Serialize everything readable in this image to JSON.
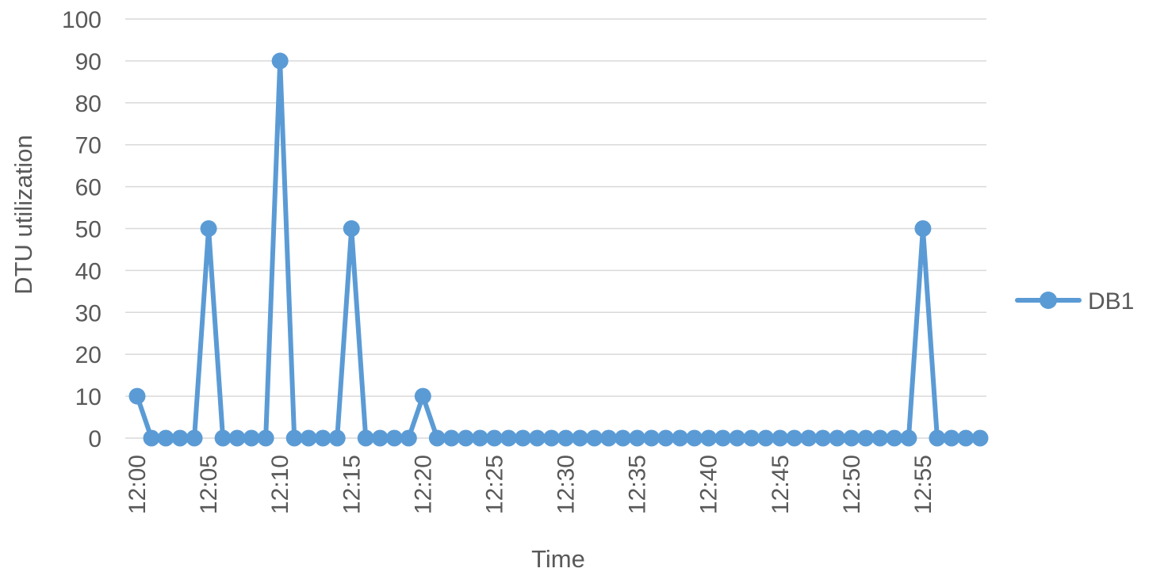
{
  "chart_data": {
    "type": "line",
    "xlabel": "Time",
    "ylabel": "DTU utilization",
    "ylim": [
      0,
      100
    ],
    "yticks": [
      0,
      10,
      20,
      30,
      40,
      50,
      60,
      70,
      80,
      90,
      100
    ],
    "x": [
      "12:00",
      "12:01",
      "12:02",
      "12:03",
      "12:04",
      "12:05",
      "12:06",
      "12:07",
      "12:08",
      "12:09",
      "12:10",
      "12:11",
      "12:12",
      "12:13",
      "12:14",
      "12:15",
      "12:16",
      "12:17",
      "12:18",
      "12:19",
      "12:20",
      "12:21",
      "12:22",
      "12:23",
      "12:24",
      "12:25",
      "12:26",
      "12:27",
      "12:28",
      "12:29",
      "12:30",
      "12:31",
      "12:32",
      "12:33",
      "12:34",
      "12:35",
      "12:36",
      "12:37",
      "12:38",
      "12:39",
      "12:40",
      "12:41",
      "12:42",
      "12:43",
      "12:44",
      "12:45",
      "12:46",
      "12:47",
      "12:48",
      "12:49",
      "12:50",
      "12:51",
      "12:52",
      "12:53",
      "12:54",
      "12:55",
      "12:56",
      "12:57",
      "12:58",
      "12:59"
    ],
    "xtick_labels": [
      "12:00",
      "12:05",
      "12:10",
      "12:15",
      "12:20",
      "12:25",
      "12:30",
      "12:35",
      "12:40",
      "12:45",
      "12:50",
      "12:55"
    ],
    "series": [
      {
        "name": "DB1",
        "color": "#5b9bd5",
        "values": [
          10,
          0,
          0,
          0,
          0,
          50,
          0,
          0,
          0,
          0,
          90,
          0,
          0,
          0,
          0,
          50,
          0,
          0,
          0,
          0,
          10,
          0,
          0,
          0,
          0,
          0,
          0,
          0,
          0,
          0,
          0,
          0,
          0,
          0,
          0,
          0,
          0,
          0,
          0,
          0,
          0,
          0,
          0,
          0,
          0,
          0,
          0,
          0,
          0,
          0,
          0,
          0,
          0,
          0,
          0,
          50,
          0,
          0,
          0,
          0
        ]
      }
    ],
    "grid": true,
    "legend_position": "right",
    "gridline_color": "#d9d9d9"
  }
}
